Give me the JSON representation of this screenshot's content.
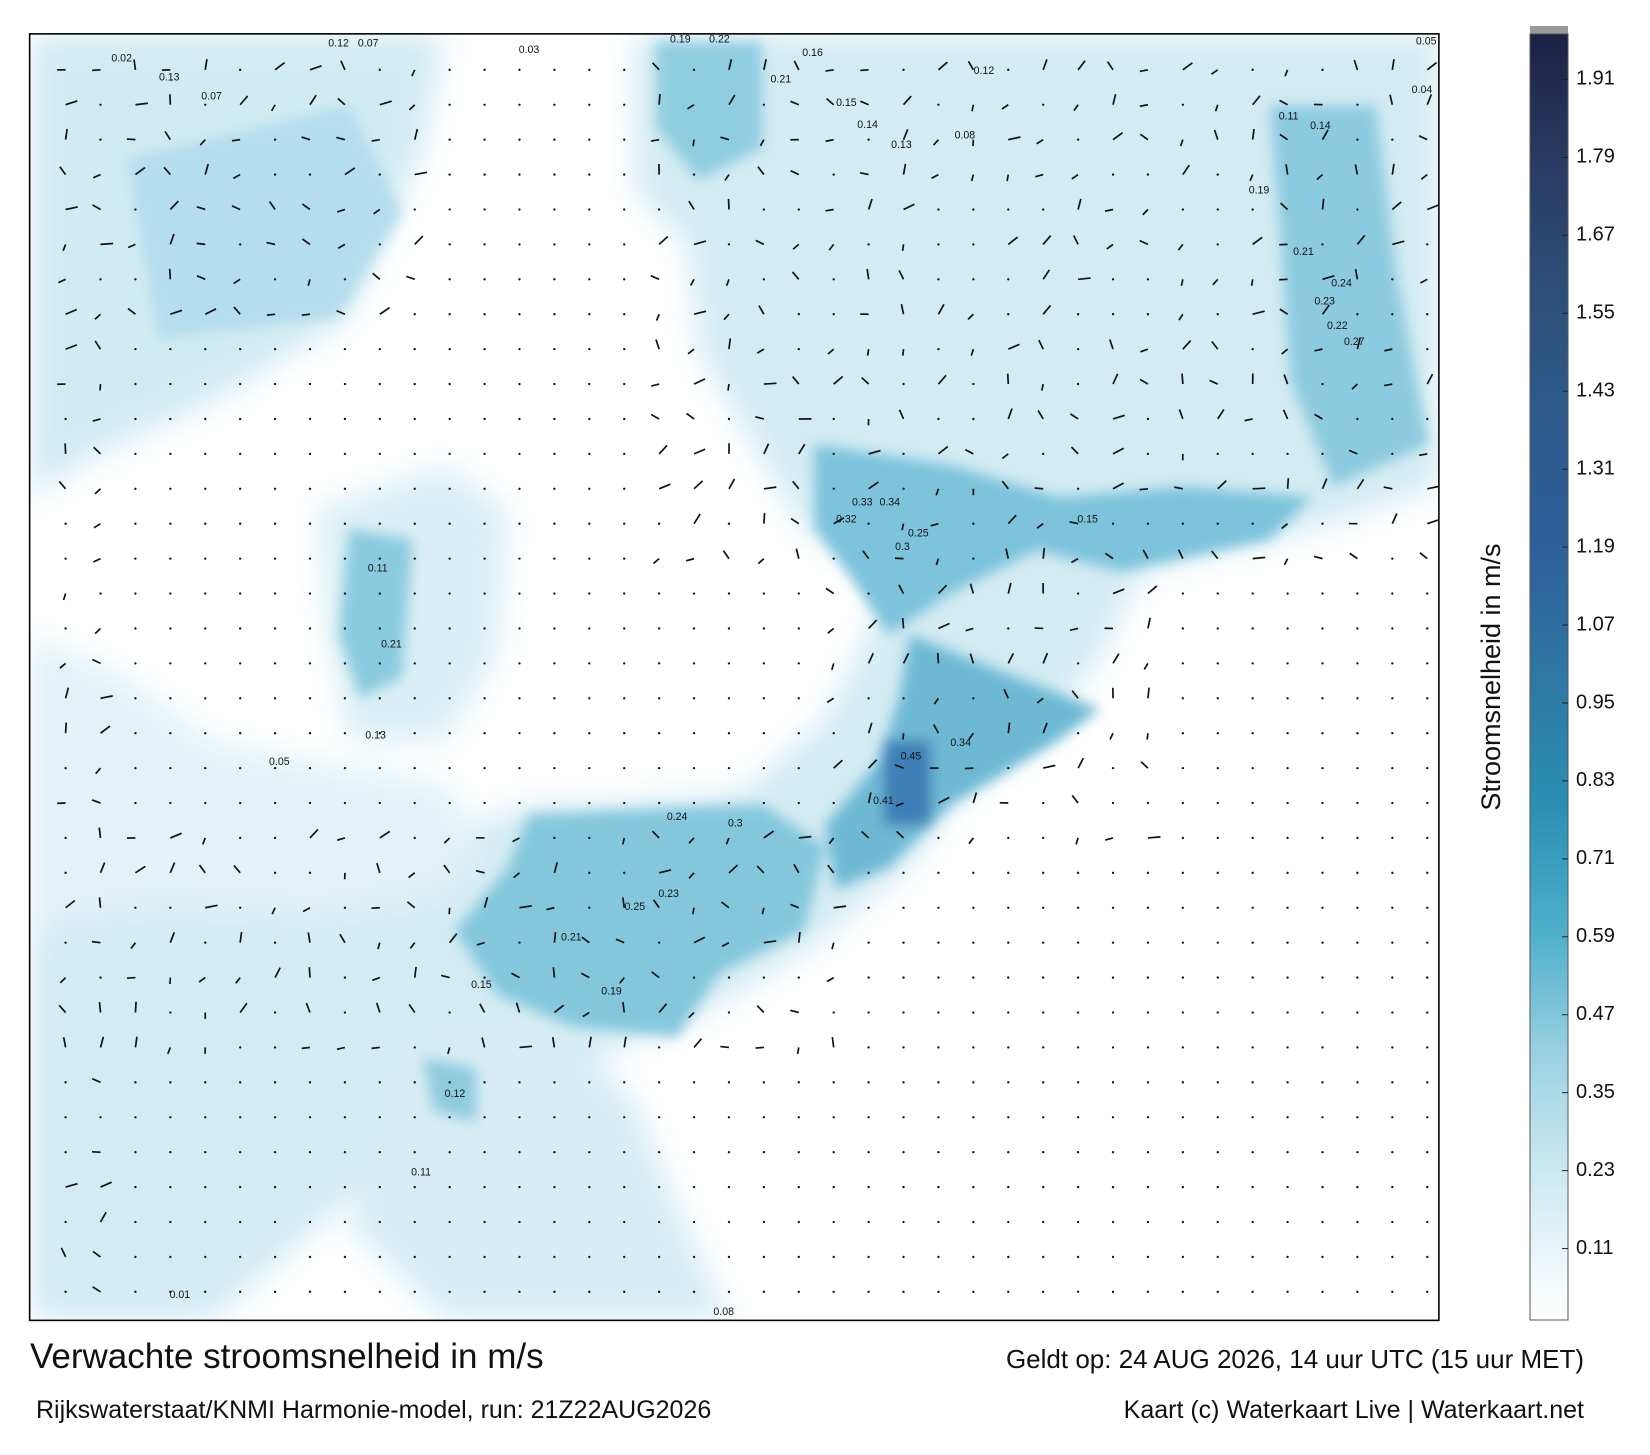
{
  "title": "Verwachte stroomsnelheid in m/s",
  "subtitle": "Rijkswaterstaat/KNMI Harmonie-model, run: 21Z22AUG2026",
  "valid": "Geldt op: 24 AUG 2026, 14 uur UTC (15 uur MET)",
  "credit": "Kaart (c) Waterkaart Live | Waterkaart.net",
  "colorbar": {
    "label": "Stroomsnelheid in m/s",
    "lim": [
      0,
      1.98
    ],
    "ticks": [
      0.11,
      0.23,
      0.35,
      0.47,
      0.59,
      0.71,
      0.83,
      0.95,
      1.07,
      1.19,
      1.31,
      1.43,
      1.55,
      1.67,
      1.79,
      1.91
    ],
    "colors": [
      "#ffffff",
      "#d4ecf3",
      "#9fd3e3",
      "#4fb0cc",
      "#2a8fb2",
      "#2e78a3",
      "#2d5f9a",
      "#2f5b8c",
      "#2d4f78",
      "#2a3b63",
      "#1c2145"
    ]
  },
  "speed_labels": [
    0.12,
    0.07,
    0.02,
    0.13,
    0.07,
    0.03,
    0.19,
    0.22,
    0.16,
    0.12,
    0.21,
    0.15,
    0.14,
    0.13,
    0.08,
    0.11,
    0.14,
    0.19,
    0.21,
    0.24,
    0.23,
    0.22,
    0.27,
    0.34,
    0.33,
    0.32,
    0.25,
    0.3,
    0.45,
    0.34,
    0.41,
    0.23,
    0.25,
    0.24,
    0.3,
    0.21,
    0.19,
    0.15,
    0.12,
    0.11,
    0.01,
    0.08,
    0.05,
    0.04,
    0.11,
    0.21,
    0.13,
    0.05,
    0.15
  ]
}
